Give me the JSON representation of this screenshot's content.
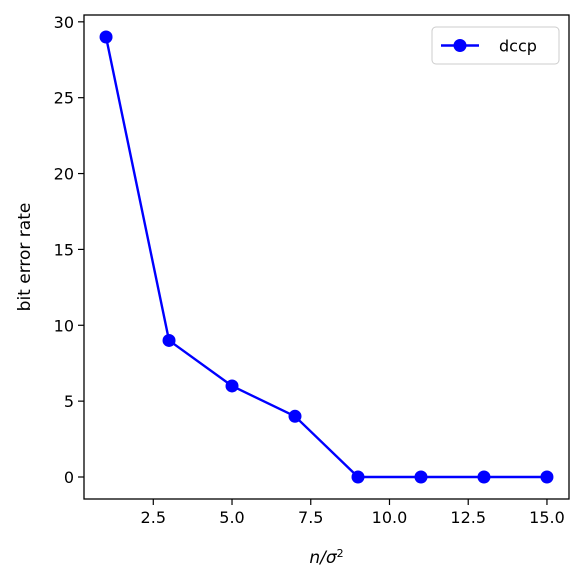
{
  "chart_data": {
    "type": "line",
    "title": "",
    "xlabel": "n/σ²",
    "xlabel_parts": {
      "var": "n/σ",
      "sup": "2"
    },
    "ylabel": "bit error rate",
    "xlim": [
      0.3,
      15.7
    ],
    "ylim": [
      -1.45,
      30.45
    ],
    "x_ticks": [
      2.5,
      5.0,
      7.5,
      10.0,
      12.5,
      15.0
    ],
    "x_tick_labels": [
      "2.5",
      "5.0",
      "7.5",
      "10.0",
      "12.5",
      "15.0"
    ],
    "y_ticks": [
      0,
      5,
      10,
      15,
      20,
      25,
      30
    ],
    "y_tick_labels": [
      "0",
      "5",
      "10",
      "15",
      "20",
      "25",
      "30"
    ],
    "grid": false,
    "legend": {
      "placement": "top-right"
    },
    "x": [
      1,
      3,
      5,
      7,
      9,
      11,
      13,
      15
    ],
    "series": [
      {
        "name": "dccp",
        "color": "#0000ff",
        "marker": "circle",
        "values": [
          29,
          9,
          6,
          4,
          0,
          0,
          0,
          0
        ]
      }
    ]
  }
}
